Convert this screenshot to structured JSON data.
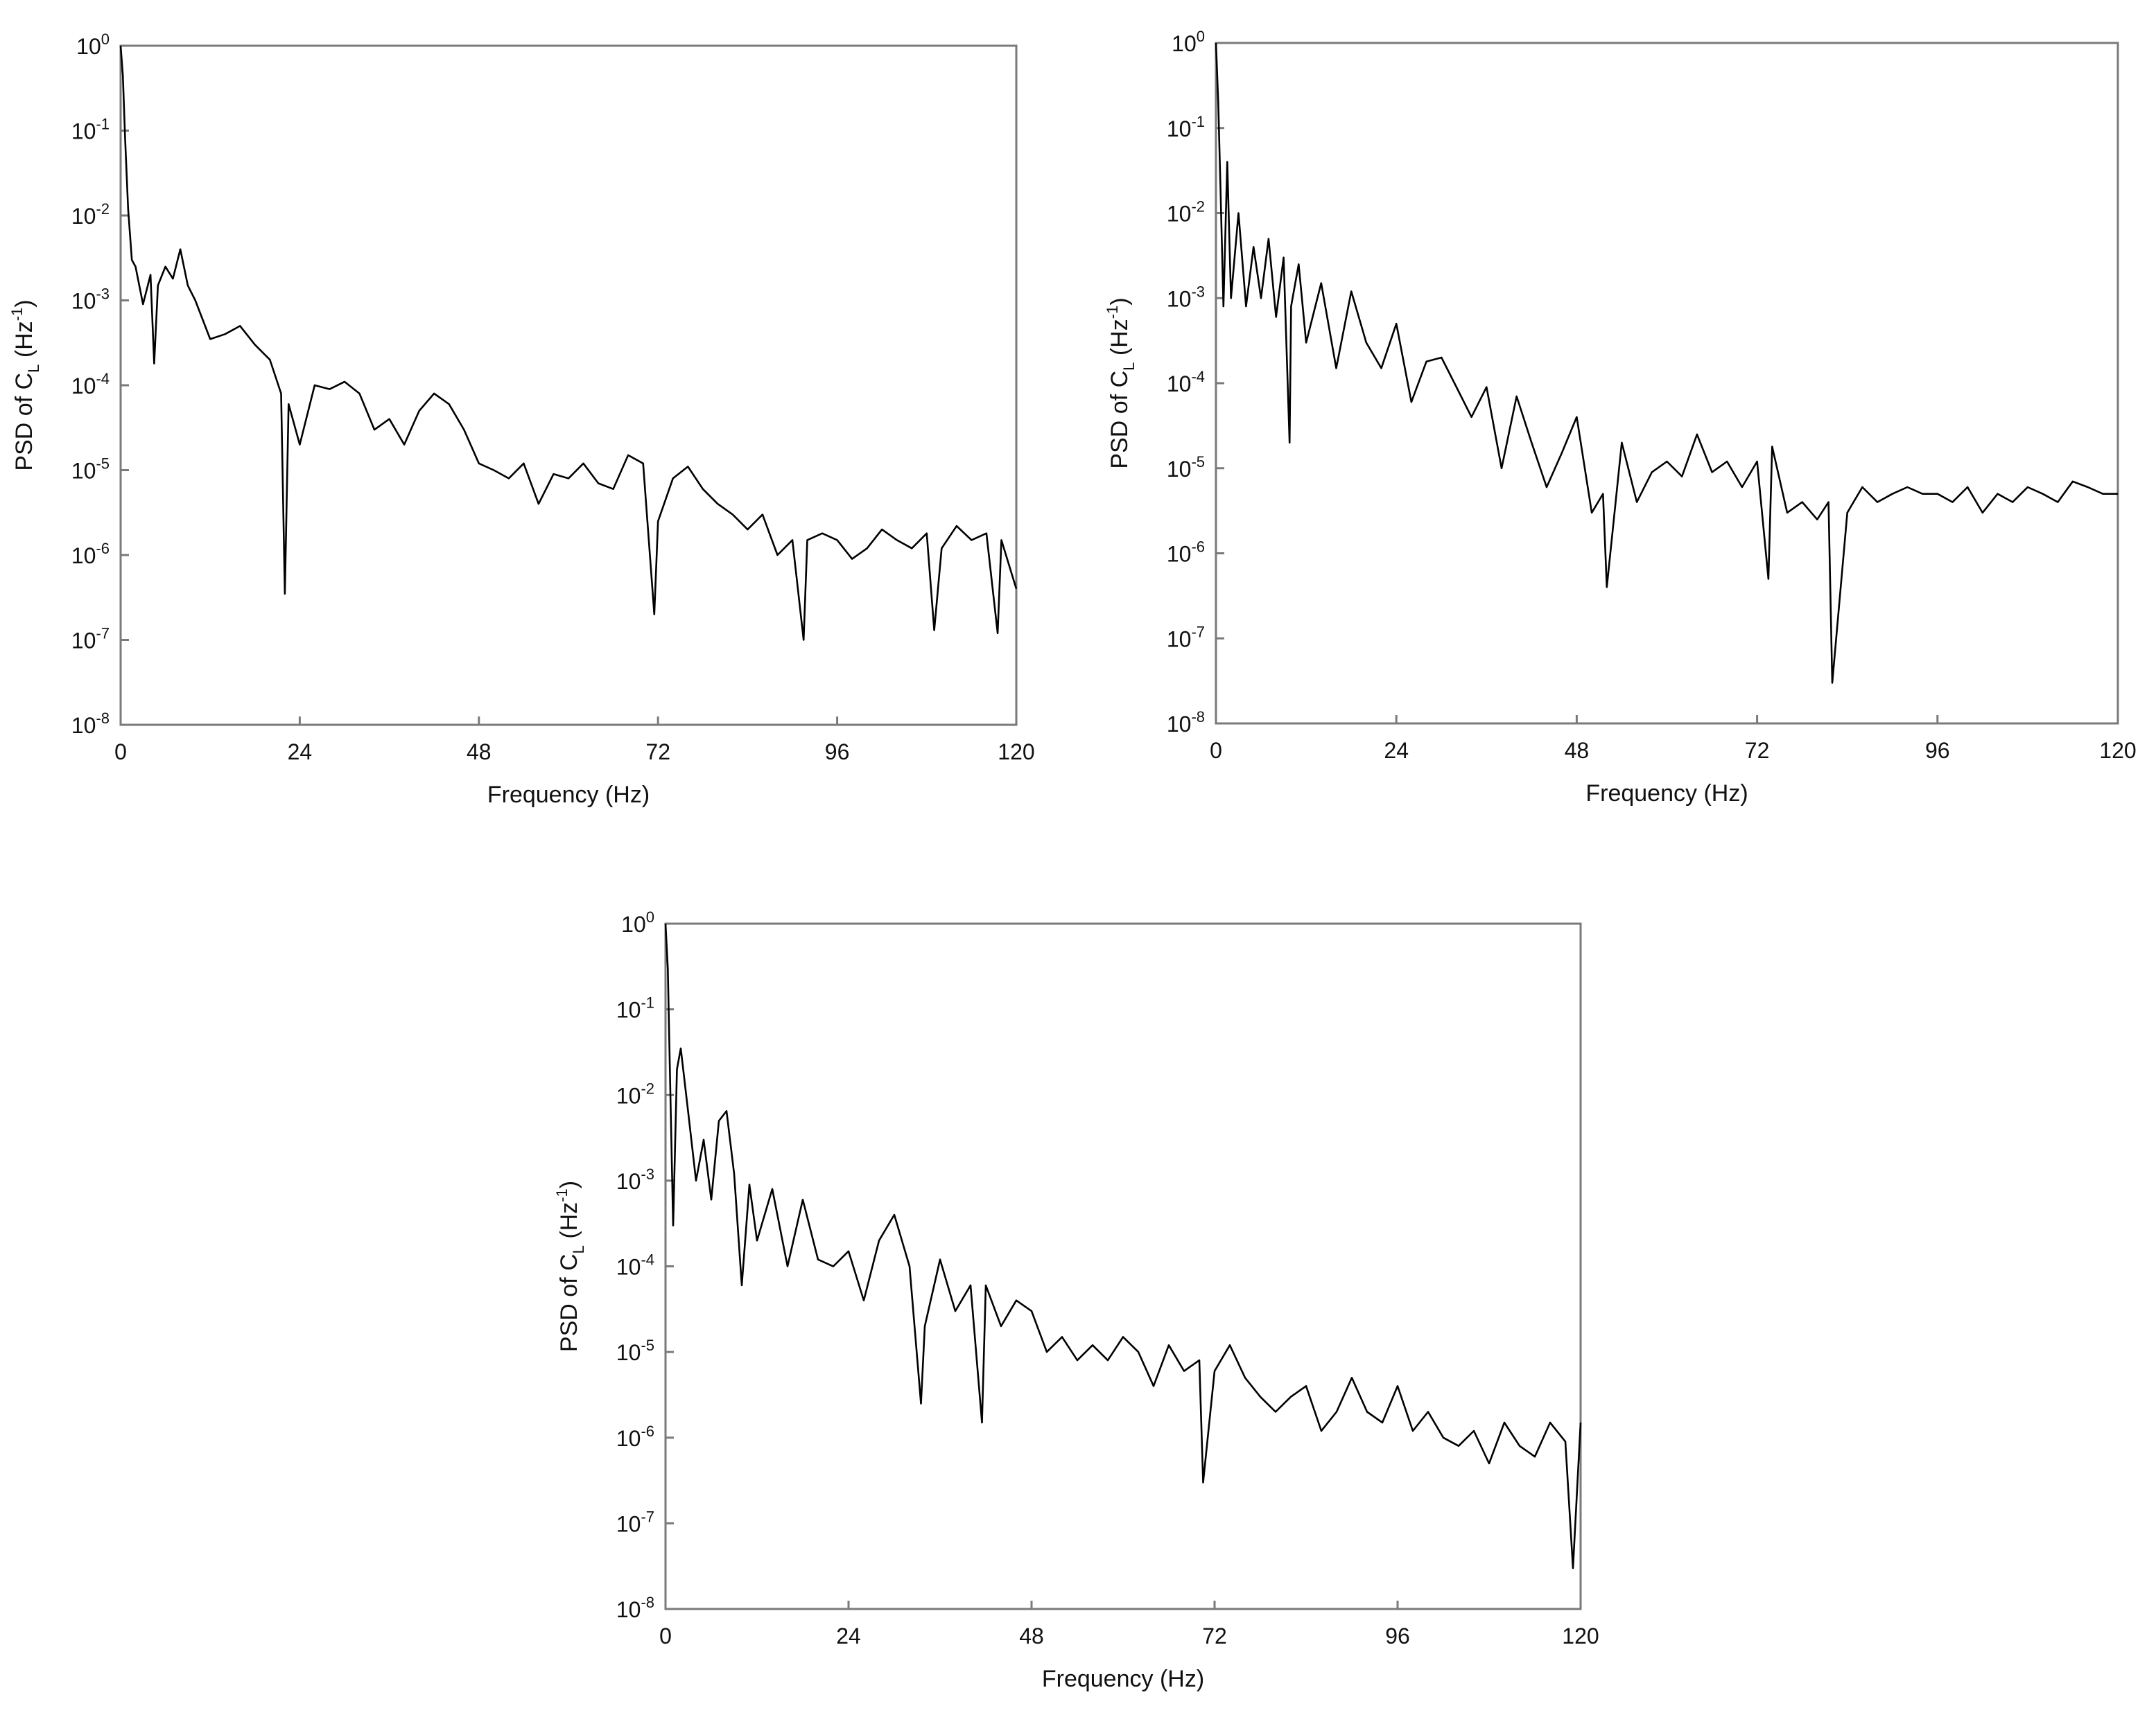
{
  "chart_data": [
    {
      "type": "line",
      "xlabel": "Frequency (Hz)",
      "ylabel_main": "PSD of C",
      "ylabel_sub": "L",
      "ylabel_unit_open": " (Hz",
      "ylabel_unit_exp": "-1",
      "ylabel_unit_close": ")",
      "xlim": [
        0,
        120
      ],
      "xticks": [
        "0",
        "24",
        "48",
        "72",
        "96",
        "120"
      ],
      "xtick_values": [
        0,
        24,
        48,
        72,
        96,
        120
      ],
      "yscale": "log",
      "ylim": [
        1e-08,
        1
      ],
      "yticks": [
        {
          "base": "10",
          "exp": "0"
        },
        {
          "base": "10",
          "exp": "-1"
        },
        {
          "base": "10",
          "exp": "-2"
        },
        {
          "base": "10",
          "exp": "-3"
        },
        {
          "base": "10",
          "exp": "-4"
        },
        {
          "base": "10",
          "exp": "-5"
        },
        {
          "base": "10",
          "exp": "-6"
        },
        {
          "base": "10",
          "exp": "-7"
        },
        {
          "base": "10",
          "exp": "-8"
        }
      ],
      "ytick_exponents": [
        0,
        -1,
        -2,
        -3,
        -4,
        -5,
        -6,
        -7,
        -8
      ],
      "grid": false,
      "series": [
        {
          "x": [
            0,
            0.3,
            0.6,
            1,
            1.5,
            2,
            3,
            4,
            4.5,
            5,
            6,
            7,
            8,
            9,
            10,
            12,
            14,
            16,
            18,
            20,
            21.5,
            22,
            22.5,
            24,
            26,
            28,
            30,
            32,
            34,
            36,
            38,
            40,
            42,
            44,
            46,
            48,
            50,
            52,
            54,
            56,
            58,
            60,
            62,
            64,
            66,
            68,
            70,
            71.5,
            72,
            74,
            76,
            78,
            80,
            82,
            84,
            86,
            88,
            90,
            91.5,
            92,
            94,
            96,
            98,
            100,
            102,
            104,
            106,
            108,
            109,
            110,
            112,
            114,
            116,
            117.5,
            118,
            120
          ],
          "y": [
            1,
            0.45,
            0.08,
            0.012,
            0.003,
            0.0025,
            0.0009,
            0.002,
            0.00018,
            0.0015,
            0.0025,
            0.0018,
            0.004,
            0.0015,
            0.001,
            0.00035,
            0.0004,
            0.0005,
            0.0003,
            0.0002,
            8e-05,
            3.5e-07,
            6e-05,
            2e-05,
            0.0001,
            9e-05,
            0.00011,
            8e-05,
            3e-05,
            4e-05,
            2e-05,
            5e-05,
            8e-05,
            6e-05,
            3e-05,
            1.2e-05,
            1e-05,
            8e-06,
            1.2e-05,
            4e-06,
            9e-06,
            8e-06,
            1.2e-05,
            7e-06,
            6e-06,
            1.5e-05,
            1.2e-05,
            2e-07,
            2.5e-06,
            8e-06,
            1.1e-05,
            6e-06,
            4e-06,
            3e-06,
            2e-06,
            3e-06,
            1e-06,
            1.5e-06,
            1e-07,
            1.5e-06,
            1.8e-06,
            1.5e-06,
            9e-07,
            1.2e-06,
            2e-06,
            1.5e-06,
            1.2e-06,
            1.8e-06,
            1.3e-07,
            1.2e-06,
            2.2e-06,
            1.5e-06,
            1.8e-06,
            1.2e-07,
            1.5e-06,
            4e-07
          ]
        }
      ]
    },
    {
      "type": "line",
      "xlabel": "Frequency (Hz)",
      "ylabel_main": "PSD of C",
      "ylabel_sub": "L",
      "ylabel_unit_open": " (Hz",
      "ylabel_unit_exp": "-1",
      "ylabel_unit_close": ")",
      "xlim": [
        0,
        120
      ],
      "xticks": [
        "0",
        "24",
        "48",
        "72",
        "96",
        "120"
      ],
      "xtick_values": [
        0,
        24,
        48,
        72,
        96,
        120
      ],
      "yscale": "log",
      "ylim": [
        1e-08,
        1
      ],
      "yticks": [
        {
          "base": "10",
          "exp": "0"
        },
        {
          "base": "10",
          "exp": "-1"
        },
        {
          "base": "10",
          "exp": "-2"
        },
        {
          "base": "10",
          "exp": "-3"
        },
        {
          "base": "10",
          "exp": "-4"
        },
        {
          "base": "10",
          "exp": "-5"
        },
        {
          "base": "10",
          "exp": "-6"
        },
        {
          "base": "10",
          "exp": "-7"
        },
        {
          "base": "10",
          "exp": "-8"
        }
      ],
      "ytick_exponents": [
        0,
        -1,
        -2,
        -3,
        -4,
        -5,
        -6,
        -7,
        -8
      ],
      "grid": false,
      "series": [
        {
          "x": [
            0,
            0.3,
            0.6,
            1,
            1.5,
            2,
            3,
            4,
            5,
            6,
            7,
            8,
            9,
            9.8,
            10,
            11,
            12,
            14,
            16,
            18,
            20,
            22,
            24,
            26,
            28,
            30,
            32,
            34,
            36,
            38,
            40,
            42,
            44,
            46,
            48,
            50,
            51.5,
            52,
            54,
            56,
            58,
            60,
            62,
            64,
            66,
            68,
            70,
            72,
            73.5,
            74,
            76,
            78,
            80,
            81.5,
            82,
            84,
            86,
            88,
            90,
            92,
            94,
            96,
            98,
            100,
            102,
            104,
            106,
            108,
            110,
            112,
            114,
            116,
            118,
            120
          ],
          "y": [
            1,
            0.2,
            0.02,
            0.0008,
            0.04,
            0.001,
            0.01,
            0.0008,
            0.004,
            0.001,
            0.005,
            0.0006,
            0.003,
            2e-05,
            0.0008,
            0.0025,
            0.0003,
            0.0015,
            0.00015,
            0.0012,
            0.0003,
            0.00015,
            0.0005,
            6e-05,
            0.00018,
            0.0002,
            9e-05,
            4e-05,
            9e-05,
            1e-05,
            7e-05,
            2e-05,
            6e-06,
            1.5e-05,
            4e-05,
            3e-06,
            5e-06,
            4e-07,
            2e-05,
            4e-06,
            9e-06,
            1.2e-05,
            8e-06,
            2.5e-05,
            9e-06,
            1.2e-05,
            6e-06,
            1.2e-05,
            5e-07,
            1.8e-05,
            3e-06,
            4e-06,
            2.5e-06,
            4e-06,
            3e-08,
            3e-06,
            6e-06,
            4e-06,
            5e-06,
            6e-06,
            5e-06,
            5e-06,
            4e-06,
            6e-06,
            3e-06,
            5e-06,
            4e-06,
            6e-06,
            5e-06,
            4e-06,
            7e-06,
            6e-06,
            5e-06,
            5e-06
          ]
        }
      ]
    },
    {
      "type": "line",
      "xlabel": "Frequency (Hz)",
      "ylabel_main": "PSD of C",
      "ylabel_sub": "L",
      "ylabel_unit_open": " (Hz",
      "ylabel_unit_exp": "-1",
      "ylabel_unit_close": ")",
      "xlim": [
        0,
        120
      ],
      "xticks": [
        "0",
        "24",
        "48",
        "72",
        "96",
        "120"
      ],
      "xtick_values": [
        0,
        24,
        48,
        72,
        96,
        120
      ],
      "yscale": "log",
      "ylim": [
        1e-08,
        1
      ],
      "yticks": [
        {
          "base": "10",
          "exp": "0"
        },
        {
          "base": "10",
          "exp": "-1"
        },
        {
          "base": "10",
          "exp": "-2"
        },
        {
          "base": "10",
          "exp": "-3"
        },
        {
          "base": "10",
          "exp": "-4"
        },
        {
          "base": "10",
          "exp": "-5"
        },
        {
          "base": "10",
          "exp": "-6"
        },
        {
          "base": "10",
          "exp": "-7"
        },
        {
          "base": "10",
          "exp": "-8"
        }
      ],
      "ytick_exponents": [
        0,
        -1,
        -2,
        -3,
        -4,
        -5,
        -6,
        -7,
        -8
      ],
      "grid": false,
      "series": [
        {
          "x": [
            0,
            0.3,
            0.6,
            1,
            1.5,
            2,
            3,
            4,
            5,
            6,
            7,
            8,
            9,
            10,
            11,
            12,
            14,
            16,
            18,
            20,
            22,
            24,
            26,
            28,
            30,
            32,
            33.5,
            34,
            36,
            38,
            40,
            41.5,
            42,
            44,
            46,
            48,
            50,
            52,
            54,
            56,
            58,
            60,
            62,
            64,
            66,
            68,
            70,
            70.5,
            72,
            74,
            76,
            78,
            80,
            82,
            84,
            86,
            88,
            90,
            92,
            94,
            96,
            98,
            100,
            102,
            104,
            106,
            108,
            110,
            112,
            114,
            116,
            118,
            119,
            120
          ],
          "y": [
            1,
            0.3,
            0.015,
            0.0003,
            0.02,
            0.035,
            0.006,
            0.001,
            0.003,
            0.0006,
            0.005,
            0.0065,
            0.0012,
            6e-05,
            0.0009,
            0.0002,
            0.0008,
            0.0001,
            0.0006,
            0.00012,
            0.0001,
            0.00015,
            4e-05,
            0.0002,
            0.0004,
            0.0001,
            2.5e-06,
            2e-05,
            0.00012,
            3e-05,
            6e-05,
            1.5e-06,
            6e-05,
            2e-05,
            4e-05,
            3e-05,
            1e-05,
            1.5e-05,
            8e-06,
            1.2e-05,
            8e-06,
            1.5e-05,
            1e-05,
            4e-06,
            1.2e-05,
            6e-06,
            8e-06,
            3e-07,
            6e-06,
            1.2e-05,
            5e-06,
            3e-06,
            2e-06,
            3e-06,
            4e-06,
            1.2e-06,
            2e-06,
            5e-06,
            2e-06,
            1.5e-06,
            4e-06,
            1.2e-06,
            2e-06,
            1e-06,
            8e-07,
            1.2e-06,
            5e-07,
            1.5e-06,
            8e-07,
            6e-07,
            1.5e-06,
            9e-07,
            3e-08,
            1.5e-06
          ]
        }
      ]
    }
  ]
}
